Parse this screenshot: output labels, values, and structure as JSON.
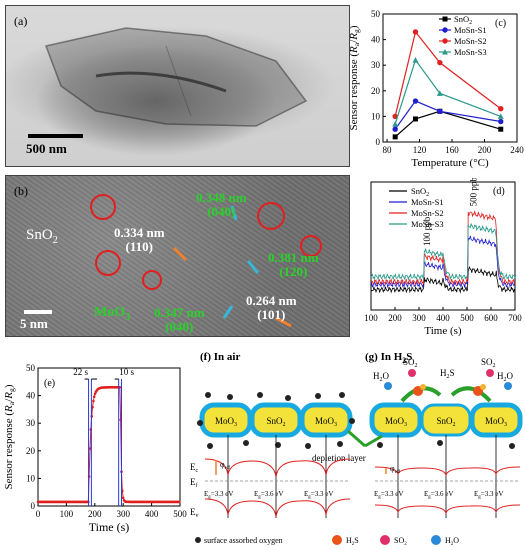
{
  "panel_a": {
    "label": "(a)",
    "scale_bar": "500 nm"
  },
  "panel_b": {
    "label": "(b)",
    "scale_bar": "5 nm",
    "sno2_label": "SnO",
    "sno2_sub": "2",
    "moo3_label": "MoO",
    "moo3_sub": "3",
    "fringes": [
      {
        "d": "0.334 nm",
        "hkl": "(110)",
        "color": "white"
      },
      {
        "d": "0.348 nm",
        "hkl": "(040)",
        "color": "green"
      },
      {
        "d": "0.381 nm",
        "hkl": "(120)",
        "color": "green"
      },
      {
        "d": "0.347 nm",
        "hkl": "(040)",
        "color": "green"
      },
      {
        "d": "0.264 nm",
        "hkl": "(101)",
        "color": "white"
      }
    ]
  },
  "panel_c": {
    "label": "(c)"
  },
  "panel_d": {
    "label": "(d)",
    "ann_100": "100 ppb",
    "ann_500": "500 ppb"
  },
  "panel_e": {
    "label": "(e)",
    "t_resp": "22 s",
    "t_rec": "10 s"
  },
  "panel_f": {
    "title": "(f) In air"
  },
  "panel_g": {
    "title_prefix": "(g) In H",
    "title_sub": "2",
    "title_suffix": "S"
  },
  "band": {
    "moo3": "MoO",
    "moo3_sub": "3",
    "sno2": "SnO",
    "sno2_sub": "2",
    "ec": "E",
    "ec_sub": "c",
    "ef": "E",
    "ef_sub": "f",
    "ev": "E",
    "ev_sub": "v",
    "phi": "φ",
    "phi_sub": "eff",
    "eg_moo3": "E",
    "eg_moo3_val": "=3.3 eV",
    "eg_sno2_val": "=3.6 eV",
    "eg_sub": "g",
    "depletion": "depletion layer",
    "h2o": "H",
    "h2o_sub": "2",
    "h2o_o": "O",
    "so2": "SO",
    "so2_sub": "2",
    "h2s": "H",
    "h2s_sub": "2",
    "h2s_s": "S"
  },
  "legend_bottom": {
    "oxygen": "surface assorbed oxygen",
    "h2s": "H",
    "h2s_sub": "2",
    "h2s_s": "S",
    "so2": "SO",
    "so2_sub": "2",
    "h2o": "H",
    "h2o_sub": "2",
    "h2o_o": "O"
  },
  "chart_data": [
    {
      "id": "c",
      "type": "line",
      "xlabel": "Temperature (°C)",
      "ylabel": "Sensor response (R_a/R_g)",
      "xlim": [
        75,
        240
      ],
      "ylim": [
        0,
        50
      ],
      "xticks": [
        80,
        120,
        160,
        200,
        240
      ],
      "yticks": [
        0,
        10,
        20,
        30,
        40,
        50
      ],
      "x": [
        90,
        115,
        145,
        220
      ],
      "series": [
        {
          "name": "SnO2",
          "color": "#000000",
          "marker": "square",
          "values": [
            2,
            9,
            12,
            5
          ]
        },
        {
          "name": "MoSn-S1",
          "color": "#1f1fd0",
          "marker": "circle",
          "values": [
            5,
            16,
            12,
            8
          ]
        },
        {
          "name": "MoSn-S2",
          "color": "#e02020",
          "marker": "circle",
          "values": [
            10,
            43,
            31,
            13
          ]
        },
        {
          "name": "MoSn-S3",
          "color": "#2a9a8a",
          "marker": "triangle",
          "values": [
            7,
            32,
            19,
            10
          ]
        }
      ]
    },
    {
      "id": "d",
      "type": "line",
      "xlabel": "Time (s)",
      "ylabel": "",
      "xlim": [
        100,
        700
      ],
      "ylim": [
        0,
        5
      ],
      "xticks": [
        100,
        200,
        300,
        400,
        500,
        600,
        700
      ],
      "yticks": [],
      "series": [
        {
          "name": "SnO2",
          "color": "#000000",
          "base": 0.8,
          "s1": 1.2,
          "s2": 1.6
        },
        {
          "name": "MoSn-S1",
          "color": "#1f1fd0",
          "base": 1.0,
          "s1": 1.8,
          "s2": 2.8
        },
        {
          "name": "MoSn-S2",
          "color": "#e02020",
          "base": 1.1,
          "s1": 2.1,
          "s2": 3.8
        },
        {
          "name": "MoSn-S3",
          "color": "#2a9a8a",
          "base": 1.3,
          "s1": 2.3,
          "s2": 3.3
        }
      ]
    },
    {
      "id": "e",
      "type": "scatter",
      "xlabel": "Time (s)",
      "ylabel": "Sensor response (R_a/R_g)",
      "xlim": [
        0,
        500
      ],
      "ylim": [
        0,
        50
      ],
      "xticks": [
        0,
        100,
        200,
        300,
        400,
        500
      ],
      "yticks": [
        0,
        10,
        20,
        30,
        40,
        50
      ],
      "color": "#e02020",
      "base": 1.5,
      "peak": 43,
      "t_on": 178,
      "t_off": 290
    }
  ]
}
